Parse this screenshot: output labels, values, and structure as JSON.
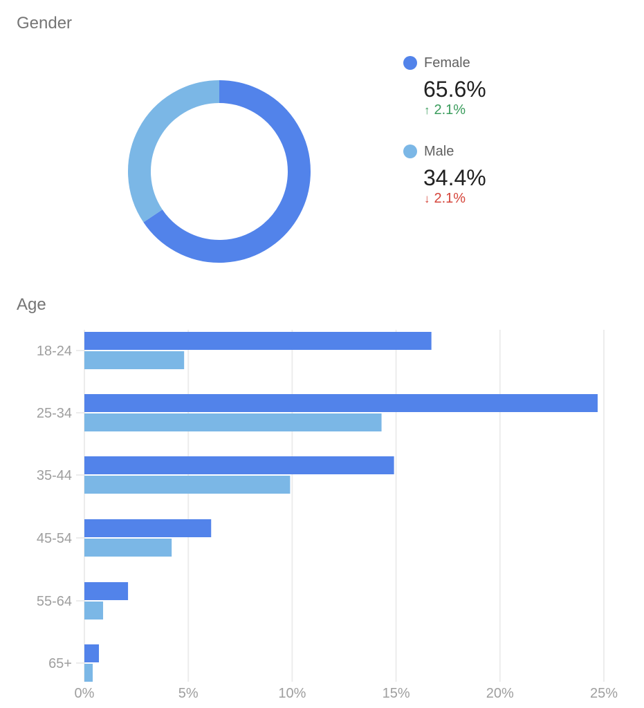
{
  "gender": {
    "title": "Gender",
    "items": [
      {
        "label": "Female",
        "value": "65.6%",
        "change": "2.1%",
        "direction": "up",
        "arrow": "🠕",
        "color": "#5283ea"
      },
      {
        "label": "Male",
        "value": "34.4%",
        "change": "2.1%",
        "direction": "down",
        "arrow": "🠗",
        "color": "#7bb7e6"
      }
    ]
  },
  "age": {
    "title": "Age"
  },
  "colors": {
    "female": "#5283ea",
    "male": "#7bb7e6",
    "up": "#3a9c5c",
    "down": "#d5453b",
    "grid": "#ececec",
    "axis_text": "#9e9e9e",
    "title_text": "#757575"
  },
  "chart_data": [
    {
      "type": "pie",
      "title": "Gender",
      "donut": true,
      "categories": [
        "Female",
        "Male"
      ],
      "values": [
        65.6,
        34.4
      ],
      "changes": [
        2.1,
        -2.1
      ],
      "legend_position": "right"
    },
    {
      "type": "bar",
      "orientation": "horizontal",
      "title": "Age",
      "categories": [
        "18-24",
        "25-34",
        "35-44",
        "45-54",
        "55-64",
        "65+"
      ],
      "series": [
        {
          "name": "Female",
          "values": [
            16.7,
            24.7,
            14.9,
            6.1,
            2.1,
            0.7
          ]
        },
        {
          "name": "Male",
          "values": [
            4.8,
            14.3,
            9.9,
            4.2,
            0.9,
            0.4
          ]
        }
      ],
      "xlabel": "",
      "ylabel": "",
      "xlim": [
        0,
        25
      ],
      "xticks": [
        "0%",
        "5%",
        "10%",
        "15%",
        "20%",
        "25%"
      ],
      "grid": true,
      "legend": "none"
    }
  ]
}
